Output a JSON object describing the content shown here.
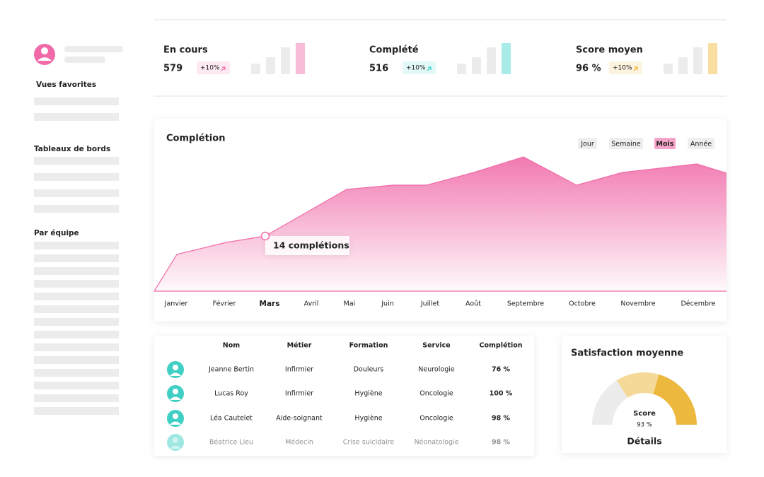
{
  "sidebar": {
    "sections": [
      "Vues favorites",
      "Tableaux de bords",
      "Par équipe"
    ]
  },
  "kpis": [
    {
      "title": "En cours",
      "value": "579",
      "delta": "+10%",
      "color": "#f06ba8"
    },
    {
      "title": "Complété",
      "value": "516",
      "delta": "+10%",
      "color": "#3fd4d0"
    },
    {
      "title": "Score moyen",
      "value": "96 %",
      "delta": "+10%",
      "color": "#efb52e"
    }
  ],
  "chart": {
    "title": "Complétion",
    "periods": [
      {
        "label": "Jour"
      },
      {
        "label": "Semaine"
      },
      {
        "label": "Mois",
        "active": true
      },
      {
        "label": "Année"
      }
    ],
    "months": [
      {
        "label": "Janvier"
      },
      {
        "label": "Février"
      },
      {
        "label": "Mars",
        "active": true
      },
      {
        "label": "Avril"
      },
      {
        "label": "Mai"
      },
      {
        "label": "Juin"
      },
      {
        "label": "Juillet"
      },
      {
        "label": "Août"
      },
      {
        "label": "Septembre"
      },
      {
        "label": "Octobre"
      },
      {
        "label": "Novembre"
      },
      {
        "label": "Décembre"
      }
    ],
    "tooltip": "14 complétions"
  },
  "table": {
    "columns": [
      "Nom",
      "Métier",
      "Formation",
      "Service",
      "Complétion"
    ],
    "rows": [
      [
        "Jeanne Bertin",
        "Infirmier",
        "Douleurs",
        "Neurologie",
        "76 %"
      ],
      [
        "Lucas Roy",
        "Infirmier",
        "Hygiène",
        "Oncologie",
        "100 %"
      ],
      [
        "Léa Cautelet",
        "Aide-soignant",
        "Hygiène",
        "Oncologie",
        "98 %"
      ],
      [
        "Béatrice Lieu",
        "Médecin",
        "Crise suicidaire",
        "Néonatologie",
        "98 %"
      ]
    ]
  },
  "satisfaction": {
    "title": "Satisfaction moyenne",
    "gauge_label": "Score",
    "gauge_value": "93 %",
    "link": "Détails"
  }
}
